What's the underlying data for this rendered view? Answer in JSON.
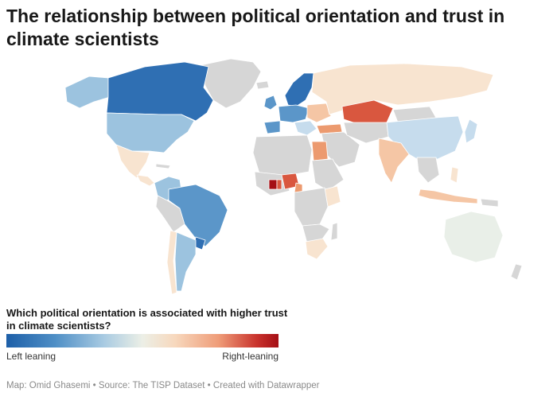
{
  "title": "The relationship between political orientation and trust in climate scientists",
  "legend": {
    "title": "Which political orientation is associated with higher trust in climate scientists?",
    "left_label": "Left leaning",
    "right_label": "Right-leaning",
    "colors": {
      "strong_left": "#2f6fb3",
      "moderate_left": "#5b96c9",
      "weak_left": "#9cc3df",
      "very_weak_left": "#c6dced",
      "neutral": "#e9efe8",
      "very_weak_right": "#f8e4d0",
      "weak_right": "#f5c6a5",
      "moderate_right": "#ec9a6f",
      "strong_right": "#d9573f",
      "very_strong_right": "#a50f15",
      "no_data": "#d6d6d6"
    }
  },
  "footer": "Map: Omid Ghasemi • Source: The TISP Dataset • Created with Datawrapper"
}
